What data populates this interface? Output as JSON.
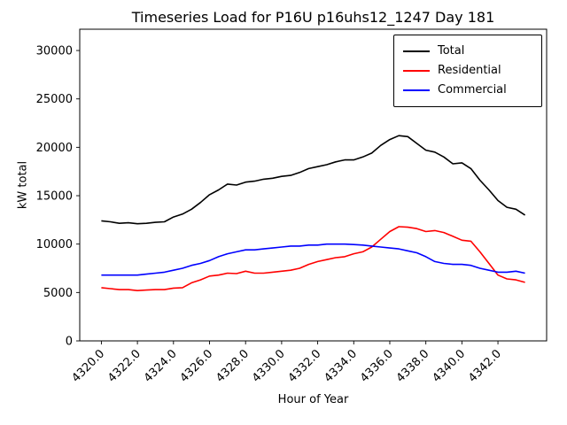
{
  "chart_data": {
    "type": "line",
    "title": "Timeseries Load for P16U p16uhs12_1247  Day 181",
    "xlabel": "Hour of Year",
    "ylabel": "kW total",
    "xlim": [
      4318.8,
      4344.7
    ],
    "ylim": [
      0,
      32200
    ],
    "grid": false,
    "legend_position": "upper right",
    "xticks": [
      4320,
      4322,
      4324,
      4326,
      4328,
      4330,
      4332,
      4334,
      4336,
      4338,
      4340,
      4342
    ],
    "xtick_labels": [
      "4320.0",
      "4322.0",
      "4324.0",
      "4326.0",
      "4328.0",
      "4330.0",
      "4332.0",
      "4334.0",
      "4336.0",
      "4338.0",
      "4340.0",
      "4342.0"
    ],
    "yticks": [
      0,
      5000,
      10000,
      15000,
      20000,
      25000,
      30000
    ],
    "ytick_labels": [
      "0",
      "5000",
      "10000",
      "15000",
      "20000",
      "25000",
      "30000"
    ],
    "x": [
      4320.0,
      4320.5,
      4321.0,
      4321.5,
      4322.0,
      4322.5,
      4323.0,
      4323.5,
      4324.0,
      4324.5,
      4325.0,
      4325.5,
      4326.0,
      4326.5,
      4327.0,
      4327.5,
      4328.0,
      4328.5,
      4329.0,
      4329.5,
      4330.0,
      4330.5,
      4331.0,
      4331.5,
      4332.0,
      4332.5,
      4333.0,
      4333.5,
      4334.0,
      4334.5,
      4335.0,
      4335.5,
      4336.0,
      4336.5,
      4337.0,
      4337.5,
      4338.0,
      4338.5,
      4339.0,
      4339.5,
      4340.0,
      4340.5,
      4341.0,
      4341.5,
      4342.0,
      4342.5,
      4343.0,
      4343.5
    ],
    "series": [
      {
        "name": "Total",
        "color": "#000000",
        "values": [
          12400,
          12300,
          12150,
          12200,
          12100,
          12150,
          12250,
          12300,
          12800,
          13100,
          13600,
          14300,
          15100,
          15600,
          16200,
          16100,
          16400,
          16500,
          16700,
          16800,
          17000,
          17100,
          17400,
          17800,
          18000,
          18200,
          18500,
          18700,
          18700,
          19000,
          19400,
          20200,
          20800,
          21200,
          21100,
          20400,
          19700,
          19500,
          19000,
          18300,
          18400,
          17800,
          16600,
          15600,
          14500,
          13800,
          13600,
          13000
        ]
      },
      {
        "name": "Residential",
        "color": "#ff0000",
        "values": [
          5500,
          5400,
          5300,
          5300,
          5200,
          5250,
          5300,
          5300,
          5450,
          5500,
          6000,
          6300,
          6700,
          6800,
          7000,
          6950,
          7200,
          7000,
          7000,
          7100,
          7200,
          7300,
          7500,
          7900,
          8200,
          8400,
          8600,
          8700,
          9000,
          9200,
          9700,
          10500,
          11300,
          11800,
          11750,
          11600,
          11300,
          11400,
          11200,
          10800,
          10400,
          10300,
          9200,
          8000,
          6800,
          6400,
          6300,
          6050
        ]
      },
      {
        "name": "Commercial",
        "color": "#0000ff",
        "values": [
          6800,
          6800,
          6800,
          6800,
          6800,
          6900,
          7000,
          7100,
          7300,
          7500,
          7800,
          8000,
          8300,
          8700,
          9000,
          9200,
          9400,
          9400,
          9500,
          9600,
          9700,
          9800,
          9800,
          9900,
          9900,
          10000,
          10000,
          10000,
          9950,
          9900,
          9800,
          9700,
          9600,
          9500,
          9300,
          9100,
          8700,
          8200,
          8000,
          7900,
          7900,
          7800,
          7500,
          7300,
          7100,
          7100,
          7200,
          7000
        ]
      }
    ]
  }
}
